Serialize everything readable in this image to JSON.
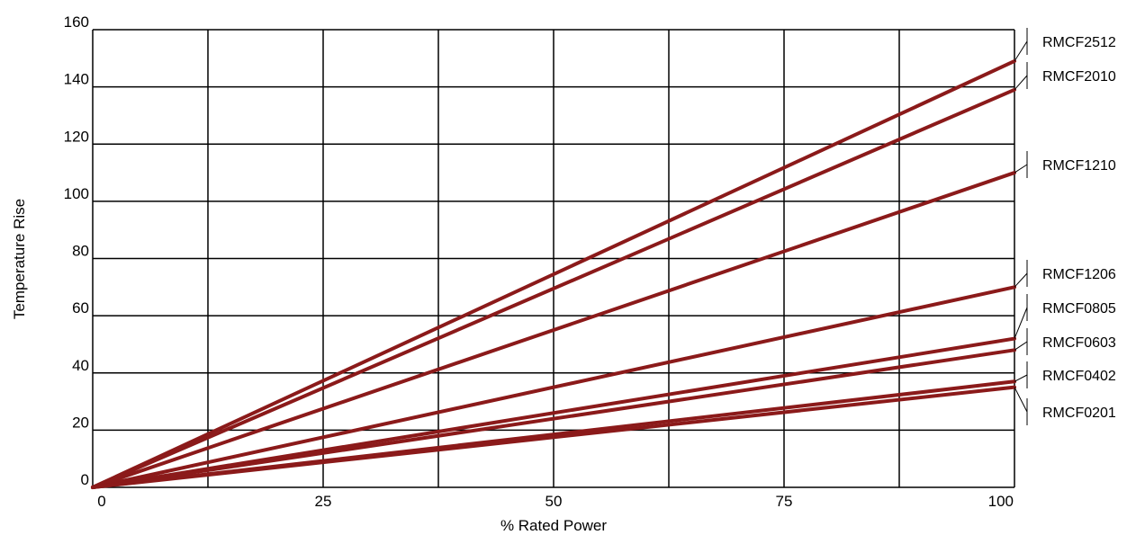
{
  "chart_data": {
    "type": "line",
    "title": "",
    "xlabel": "% Rated Power",
    "ylabel": "Temperature Rise",
    "xlim": [
      0,
      100
    ],
    "ylim": [
      0,
      160
    ],
    "x_ticks": [
      0,
      25,
      50,
      75,
      100
    ],
    "y_ticks": [
      0,
      20,
      40,
      60,
      80,
      100,
      120,
      140,
      160
    ],
    "grid": true,
    "legend": "right",
    "line_color": "#8b1a1a",
    "x": [
      0,
      100
    ],
    "series": [
      {
        "name": "RMCF2512",
        "values": [
          0,
          149
        ]
      },
      {
        "name": "RMCF2010",
        "values": [
          0,
          139
        ]
      },
      {
        "name": "RMCF1210",
        "values": [
          0,
          110
        ]
      },
      {
        "name": "RMCF1206",
        "values": [
          0,
          70
        ]
      },
      {
        "name": "RMCF0805",
        "values": [
          0,
          52
        ]
      },
      {
        "name": "RMCF0603",
        "values": [
          0,
          48
        ]
      },
      {
        "name": "RMCF0402",
        "values": [
          0,
          37
        ]
      },
      {
        "name": "RMCF0201",
        "values": [
          0,
          35
        ]
      }
    ]
  }
}
